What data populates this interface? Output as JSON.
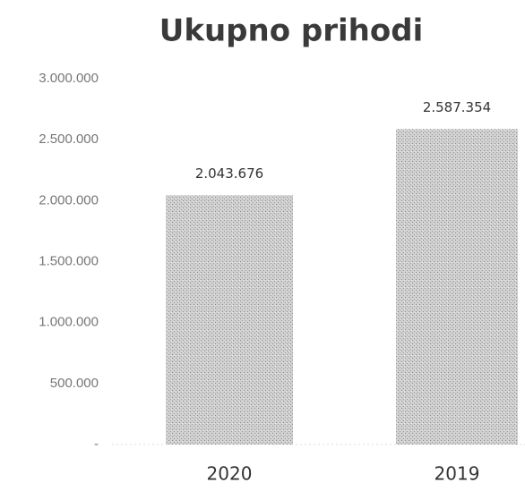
{
  "chart_data": {
    "type": "bar",
    "title": "Ukupno prihodi",
    "categories": [
      "2020",
      "2019"
    ],
    "values": [
      2043676,
      2587354
    ],
    "value_labels": [
      "2.043.676",
      "2.587.354"
    ],
    "color": "#c4c4c4",
    "ylim": [
      0,
      3000000
    ],
    "yticks": [
      {
        "value": 0,
        "label": "-"
      },
      {
        "value": 500000,
        "label": "500.000"
      },
      {
        "value": 1000000,
        "label": "1.000.000"
      },
      {
        "value": 1500000,
        "label": "1.500.000"
      },
      {
        "value": 2000000,
        "label": "2.000.000"
      },
      {
        "value": 2500000,
        "label": "2.500.000"
      },
      {
        "value": 3000000,
        "label": "3.000.000"
      }
    ],
    "grid": false
  }
}
